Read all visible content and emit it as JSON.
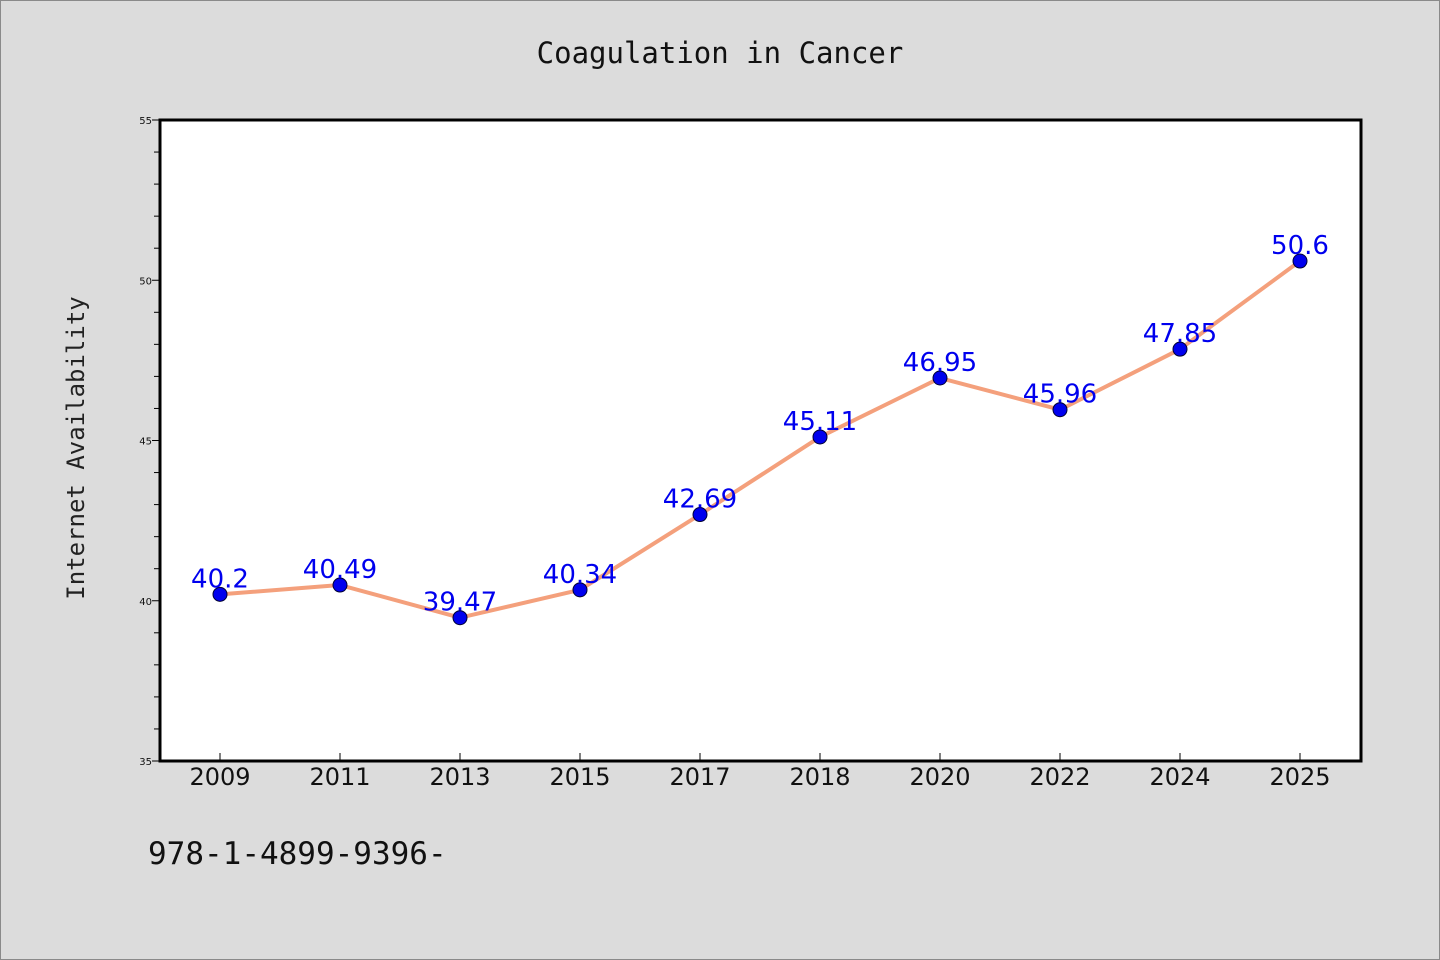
{
  "chart_data": {
    "type": "line",
    "title": "Coagulation in Cancer",
    "xlabel": "",
    "ylabel": "Internet Availability",
    "categories": [
      "2009",
      "2011",
      "2013",
      "2015",
      "2017",
      "2018",
      "2020",
      "2022",
      "2024",
      "2025"
    ],
    "series": [
      {
        "values": [
          40.2,
          40.49,
          39.47,
          40.34,
          42.69,
          45.11,
          46.95,
          45.96,
          47.85,
          50.6
        ],
        "labels": [
          "40.2",
          "40.49",
          "39.47",
          "40.34",
          "42.69",
          "45.11",
          "46.95",
          "45.96",
          "47.85",
          "50.6"
        ]
      }
    ],
    "ylim": [
      35,
      55
    ],
    "yticks": [
      "35",
      "40",
      "45",
      "50",
      "55"
    ],
    "grid": false,
    "legend": "none"
  },
  "footnote": "978-1-4899-9396-",
  "colors": {
    "background": "#dcdcdc",
    "plot_area": "#ffffff",
    "line": "#f4a07c",
    "marker": "#0000ee",
    "data_label": "#0000ee",
    "axis": "#000000"
  }
}
